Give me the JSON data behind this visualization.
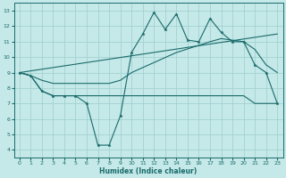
{
  "bg_color": "#c5e8e8",
  "line_color": "#1a6b6b",
  "grid_color": "#9ecece",
  "xlim": [
    -0.5,
    23.5
  ],
  "ylim": [
    3.5,
    13.5
  ],
  "xticks": [
    0,
    1,
    2,
    3,
    4,
    5,
    6,
    7,
    8,
    9,
    10,
    11,
    12,
    13,
    14,
    15,
    16,
    17,
    18,
    19,
    20,
    21,
    22,
    23
  ],
  "yticks": [
    4,
    5,
    6,
    7,
    8,
    9,
    10,
    11,
    12,
    13
  ],
  "xlabel": "Humidex (Indice chaleur)",
  "line_spiky_x": [
    0,
    1,
    2,
    3,
    4,
    5,
    6,
    7,
    8,
    9,
    10,
    11,
    12,
    13,
    14,
    15,
    16,
    17,
    18,
    19,
    20,
    21,
    22,
    23
  ],
  "line_spiky_y": [
    9.0,
    8.8,
    7.8,
    7.5,
    7.5,
    7.5,
    7.0,
    4.3,
    4.3,
    6.2,
    10.3,
    11.5,
    12.9,
    11.8,
    12.8,
    11.1,
    11.0,
    12.5,
    11.6,
    11.0,
    11.0,
    9.5,
    9.0,
    7.0
  ],
  "line_flat_x": [
    0,
    1,
    2,
    3,
    4,
    5,
    6,
    7,
    8,
    9,
    10,
    11,
    12,
    13,
    14,
    15,
    16,
    17,
    18,
    19,
    20,
    21,
    22,
    23
  ],
  "line_flat_y": [
    9.0,
    8.8,
    7.8,
    7.5,
    7.5,
    7.5,
    7.5,
    7.5,
    7.5,
    7.5,
    7.5,
    7.5,
    7.5,
    7.5,
    7.5,
    7.5,
    7.5,
    7.5,
    7.5,
    7.5,
    7.5,
    7.0,
    7.0,
    7.0
  ],
  "line_smooth_x": [
    0,
    1,
    2,
    3,
    4,
    5,
    6,
    7,
    8,
    9,
    10,
    14,
    17,
    18,
    20,
    21,
    22,
    23
  ],
  "line_smooth_y": [
    9.0,
    8.8,
    8.5,
    8.3,
    8.3,
    8.3,
    8.3,
    8.3,
    8.3,
    8.5,
    9.0,
    10.3,
    11.0,
    11.2,
    11.0,
    10.5,
    9.5,
    9.0
  ],
  "line_trend_x": [
    0,
    23
  ],
  "line_trend_y": [
    9.0,
    11.5
  ]
}
